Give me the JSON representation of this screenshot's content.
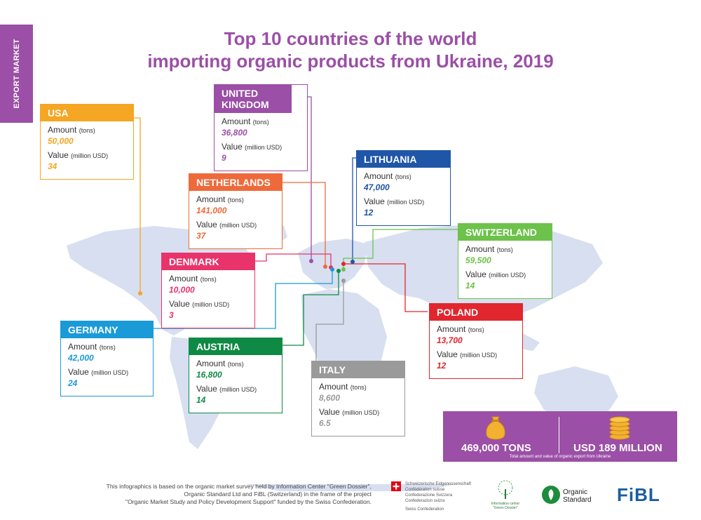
{
  "side_tab": "EXPORT MARKET",
  "title": {
    "line1": "Top 10 countries of the world",
    "line2": "importing organic products from Ukraine, 2019"
  },
  "labels": {
    "amount": "Amount",
    "amount_unit": "(tons)",
    "value": "Value",
    "value_unit": "(million USD)"
  },
  "countries": [
    {
      "id": "usa",
      "name": "USA",
      "amount": "50,000",
      "value": "34",
      "color": "#f5a623"
    },
    {
      "id": "uk",
      "name": "UNITED KINGDOM",
      "amount": "36,800",
      "value": "9",
      "color": "#9b4fa6"
    },
    {
      "id": "netherlands",
      "name": "NETHERLANDS",
      "amount": "141,000",
      "value": "37",
      "color": "#ee6a3a"
    },
    {
      "id": "lithuania",
      "name": "LITHUANIA",
      "amount": "47,000",
      "value": "12",
      "color": "#1f56a8"
    },
    {
      "id": "switzerland",
      "name": "SWITZERLAND",
      "amount": "59,500",
      "value": "14",
      "color": "#6cc24a"
    },
    {
      "id": "denmark",
      "name": "DENMARK",
      "amount": "10,000",
      "value": "3",
      "color": "#e8336b"
    },
    {
      "id": "germany",
      "name": "GERMANY",
      "amount": "42,000",
      "value": "24",
      "color": "#1a9ad6"
    },
    {
      "id": "austria",
      "name": "AUSTRIA",
      "amount": "16,800",
      "value": "14",
      "color": "#0e8a45"
    },
    {
      "id": "italy",
      "name": "ITALY",
      "amount": "8,600",
      "value": "6.5",
      "color": "#9a9a9a"
    },
    {
      "id": "poland",
      "name": "POLAND",
      "amount": "13,700",
      "value": "12",
      "color": "#e1262d"
    }
  ],
  "summary": {
    "tons": "469,000  TONS",
    "usd": "USD 189 MILLION",
    "caption": "Total amount and value of organic export from Ukraine"
  },
  "footnote": {
    "line1": "This infographics is based on the organic market survey held by Information Center \"Green Dossier\",",
    "line2": "Organic Standard Ltd and FiBL (Switzerland) in the frame of the project",
    "line3": "\"Organic Market Study and Policy Development Support\" funded by the Swiss Confederation."
  },
  "logos": {
    "swiss_lines": [
      "Schweizerische Eidgenossenschaft",
      "Confédération suisse",
      "Confederazione Svizzera",
      "Confederaziun svizra"
    ],
    "swiss_bottom": "Swiss Confederation",
    "green_dossier": "Information center \"Green Dossier\"",
    "organic_standard_1": "Organic",
    "organic_standard_2": "Standard",
    "fibl": "FiBL"
  }
}
